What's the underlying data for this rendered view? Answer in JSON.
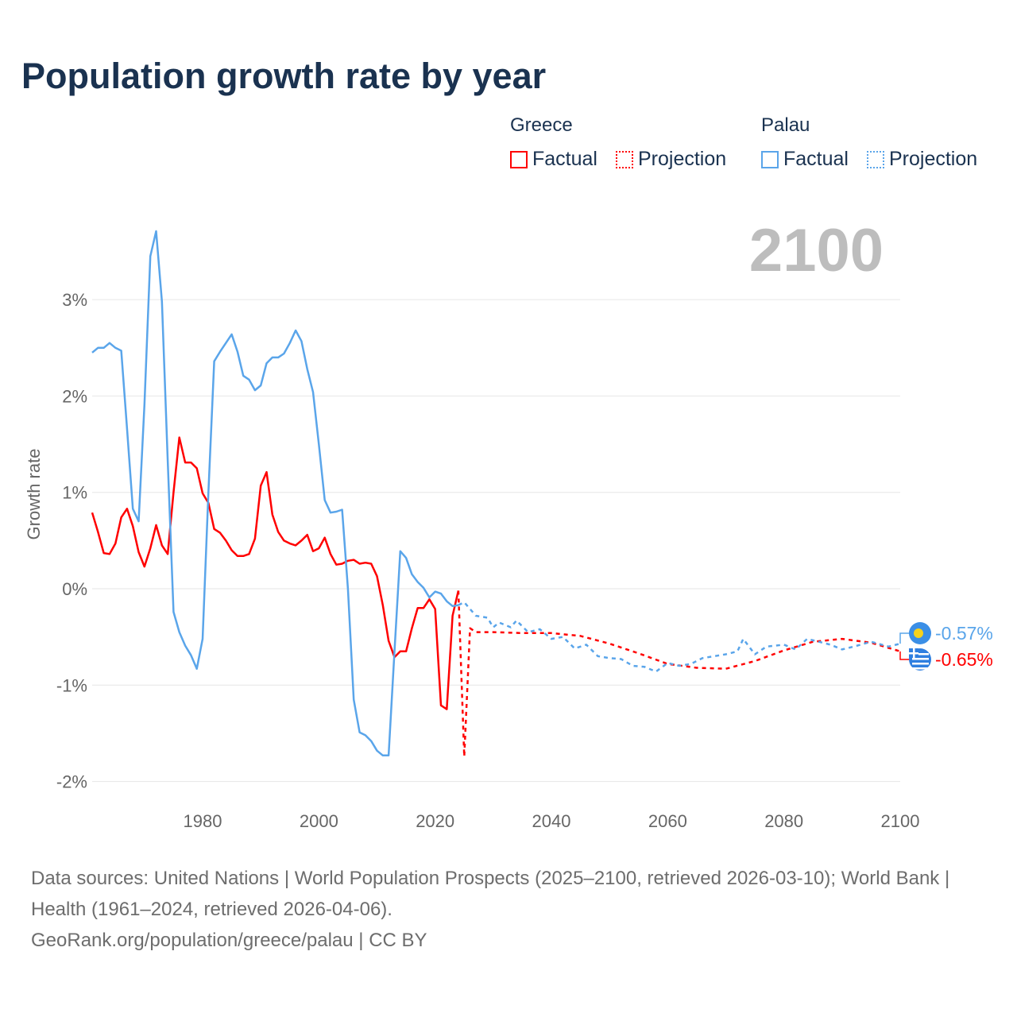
{
  "title": "Population growth rate by year",
  "year_label": "2100",
  "legend": {
    "groups": [
      {
        "name": "Greece",
        "factual": "Factual",
        "projection": "Projection",
        "color": "#ff0000"
      },
      {
        "name": "Palau",
        "factual": "Factual",
        "projection": "Projection",
        "color": "#5aa5ea"
      }
    ]
  },
  "footer": {
    "sources": "Data sources: United Nations | World Population Prospects (2025–2100, retrieved 2026-03-10); World Bank | Health (1961–2024, retrieved 2026-04-06).",
    "credit": "GeoRank.org/population/greece/palau | CC BY"
  },
  "chart_data": {
    "type": "line",
    "title": "Population growth rate by year",
    "xlabel": "",
    "ylabel": "Growth rate",
    "xlim": [
      1961,
      2100
    ],
    "ylim": [
      -2.2,
      3.9
    ],
    "xticks": [
      1980,
      2000,
      2020,
      2040,
      2060,
      2080,
      2100
    ],
    "xtick_labels": [
      "1980",
      "2000",
      "2020",
      "2040",
      "2060",
      "2080",
      "2100"
    ],
    "yticks": [
      -2,
      -1,
      0,
      1,
      2,
      3
    ],
    "ytick_labels": [
      "-2%",
      "-1%",
      "0%",
      "1%",
      "2%",
      "3%"
    ],
    "grid": true,
    "end_labels": [
      "-0.65%",
      "-0.57%"
    ],
    "series": [
      {
        "name": "Greece Factual",
        "country": "Greece",
        "style": "solid",
        "color": "#ff0000",
        "x": [
          1961,
          1962,
          1963,
          1964,
          1965,
          1966,
          1967,
          1968,
          1969,
          1970,
          1971,
          1972,
          1973,
          1974,
          1975,
          1976,
          1977,
          1978,
          1979,
          1980,
          1981,
          1982,
          1983,
          1984,
          1985,
          1986,
          1987,
          1988,
          1989,
          1990,
          1991,
          1992,
          1993,
          1994,
          1995,
          1996,
          1997,
          1998,
          1999,
          2000,
          2001,
          2002,
          2003,
          2004,
          2005,
          2006,
          2007,
          2008,
          2009,
          2010,
          2011,
          2012,
          2013,
          2014,
          2015,
          2016,
          2017,
          2018,
          2019,
          2020,
          2021,
          2022,
          2023,
          2024
        ],
        "y": [
          0.79,
          0.59,
          0.37,
          0.36,
          0.47,
          0.74,
          0.83,
          0.65,
          0.38,
          0.23,
          0.42,
          0.66,
          0.45,
          0.36,
          1.0,
          1.57,
          1.31,
          1.31,
          1.25,
          0.99,
          0.89,
          0.62,
          0.58,
          0.5,
          0.4,
          0.34,
          0.34,
          0.36,
          0.52,
          1.07,
          1.21,
          0.77,
          0.59,
          0.5,
          0.47,
          0.45,
          0.5,
          0.56,
          0.39,
          0.42,
          0.53,
          0.36,
          0.25,
          0.26,
          0.29,
          0.3,
          0.26,
          0.27,
          0.26,
          0.13,
          -0.17,
          -0.54,
          -0.71,
          -0.65,
          -0.65,
          -0.41,
          -0.2,
          -0.2,
          -0.11,
          -0.21,
          -1.21,
          -1.25,
          -0.28,
          -0.02
        ]
      },
      {
        "name": "Greece Projection",
        "country": "Greece",
        "style": "dotted",
        "color": "#ff0000",
        "x": [
          2024,
          2025,
          2026,
          2027,
          2030,
          2035,
          2040,
          2045,
          2050,
          2055,
          2060,
          2065,
          2070,
          2075,
          2080,
          2085,
          2090,
          2095,
          2100
        ],
        "y": [
          -0.02,
          -1.74,
          -0.41,
          -0.45,
          -0.45,
          -0.46,
          -0.46,
          -0.49,
          -0.57,
          -0.67,
          -0.78,
          -0.82,
          -0.83,
          -0.75,
          -0.64,
          -0.55,
          -0.52,
          -0.56,
          -0.65
        ]
      },
      {
        "name": "Palau Factual",
        "country": "Palau",
        "style": "solid",
        "color": "#5aa5ea",
        "x": [
          1961,
          1962,
          1963,
          1964,
          1965,
          1966,
          1967,
          1968,
          1969,
          1970,
          1971,
          1972,
          1973,
          1974,
          1975,
          1976,
          1977,
          1978,
          1979,
          1980,
          1981,
          1982,
          1983,
          1984,
          1985,
          1986,
          1987,
          1988,
          1989,
          1990,
          1991,
          1992,
          1993,
          1994,
          1995,
          1996,
          1997,
          1998,
          1999,
          2000,
          2001,
          2002,
          2003,
          2004,
          2005,
          2006,
          2007,
          2008,
          2009,
          2010,
          2011,
          2012,
          2013,
          2014,
          2015,
          2016,
          2017,
          2018,
          2019,
          2020,
          2021,
          2022,
          2023,
          2024
        ],
        "y": [
          2.45,
          2.5,
          2.5,
          2.55,
          2.5,
          2.47,
          1.66,
          0.83,
          0.7,
          1.91,
          3.45,
          3.71,
          2.98,
          1.33,
          -0.24,
          -0.45,
          -0.59,
          -0.69,
          -0.83,
          -0.52,
          1.0,
          2.36,
          2.46,
          2.55,
          2.64,
          2.46,
          2.21,
          2.17,
          2.06,
          2.11,
          2.34,
          2.4,
          2.4,
          2.44,
          2.55,
          2.68,
          2.57,
          2.28,
          2.04,
          1.5,
          0.92,
          0.79,
          0.8,
          0.82,
          0.0,
          -1.15,
          -1.49,
          -1.52,
          -1.58,
          -1.68,
          -1.73,
          -1.73,
          -0.65,
          0.39,
          0.32,
          0.15,
          0.07,
          0.01,
          -0.09,
          -0.03,
          -0.05,
          -0.13,
          -0.18,
          -0.17
        ]
      },
      {
        "name": "Palau Projection",
        "country": "Palau",
        "style": "dotted",
        "color": "#5aa5ea",
        "x": [
          2024,
          2025,
          2027,
          2029,
          2030,
          2031,
          2033,
          2034,
          2036,
          2038,
          2040,
          2042,
          2044,
          2046,
          2048,
          2050,
          2052,
          2054,
          2056,
          2058,
          2060,
          2062,
          2064,
          2066,
          2068,
          2070,
          2072,
          2073,
          2075,
          2077,
          2080,
          2082,
          2084,
          2086,
          2088,
          2090,
          2092,
          2095,
          2098,
          2100
        ],
        "y": [
          -0.17,
          -0.14,
          -0.28,
          -0.3,
          -0.4,
          -0.35,
          -0.4,
          -0.33,
          -0.45,
          -0.42,
          -0.52,
          -0.5,
          -0.62,
          -0.58,
          -0.7,
          -0.72,
          -0.73,
          -0.8,
          -0.81,
          -0.86,
          -0.77,
          -0.8,
          -0.78,
          -0.72,
          -0.7,
          -0.68,
          -0.65,
          -0.52,
          -0.68,
          -0.6,
          -0.58,
          -0.63,
          -0.52,
          -0.55,
          -0.58,
          -0.63,
          -0.6,
          -0.55,
          -0.6,
          -0.57
        ]
      }
    ]
  }
}
